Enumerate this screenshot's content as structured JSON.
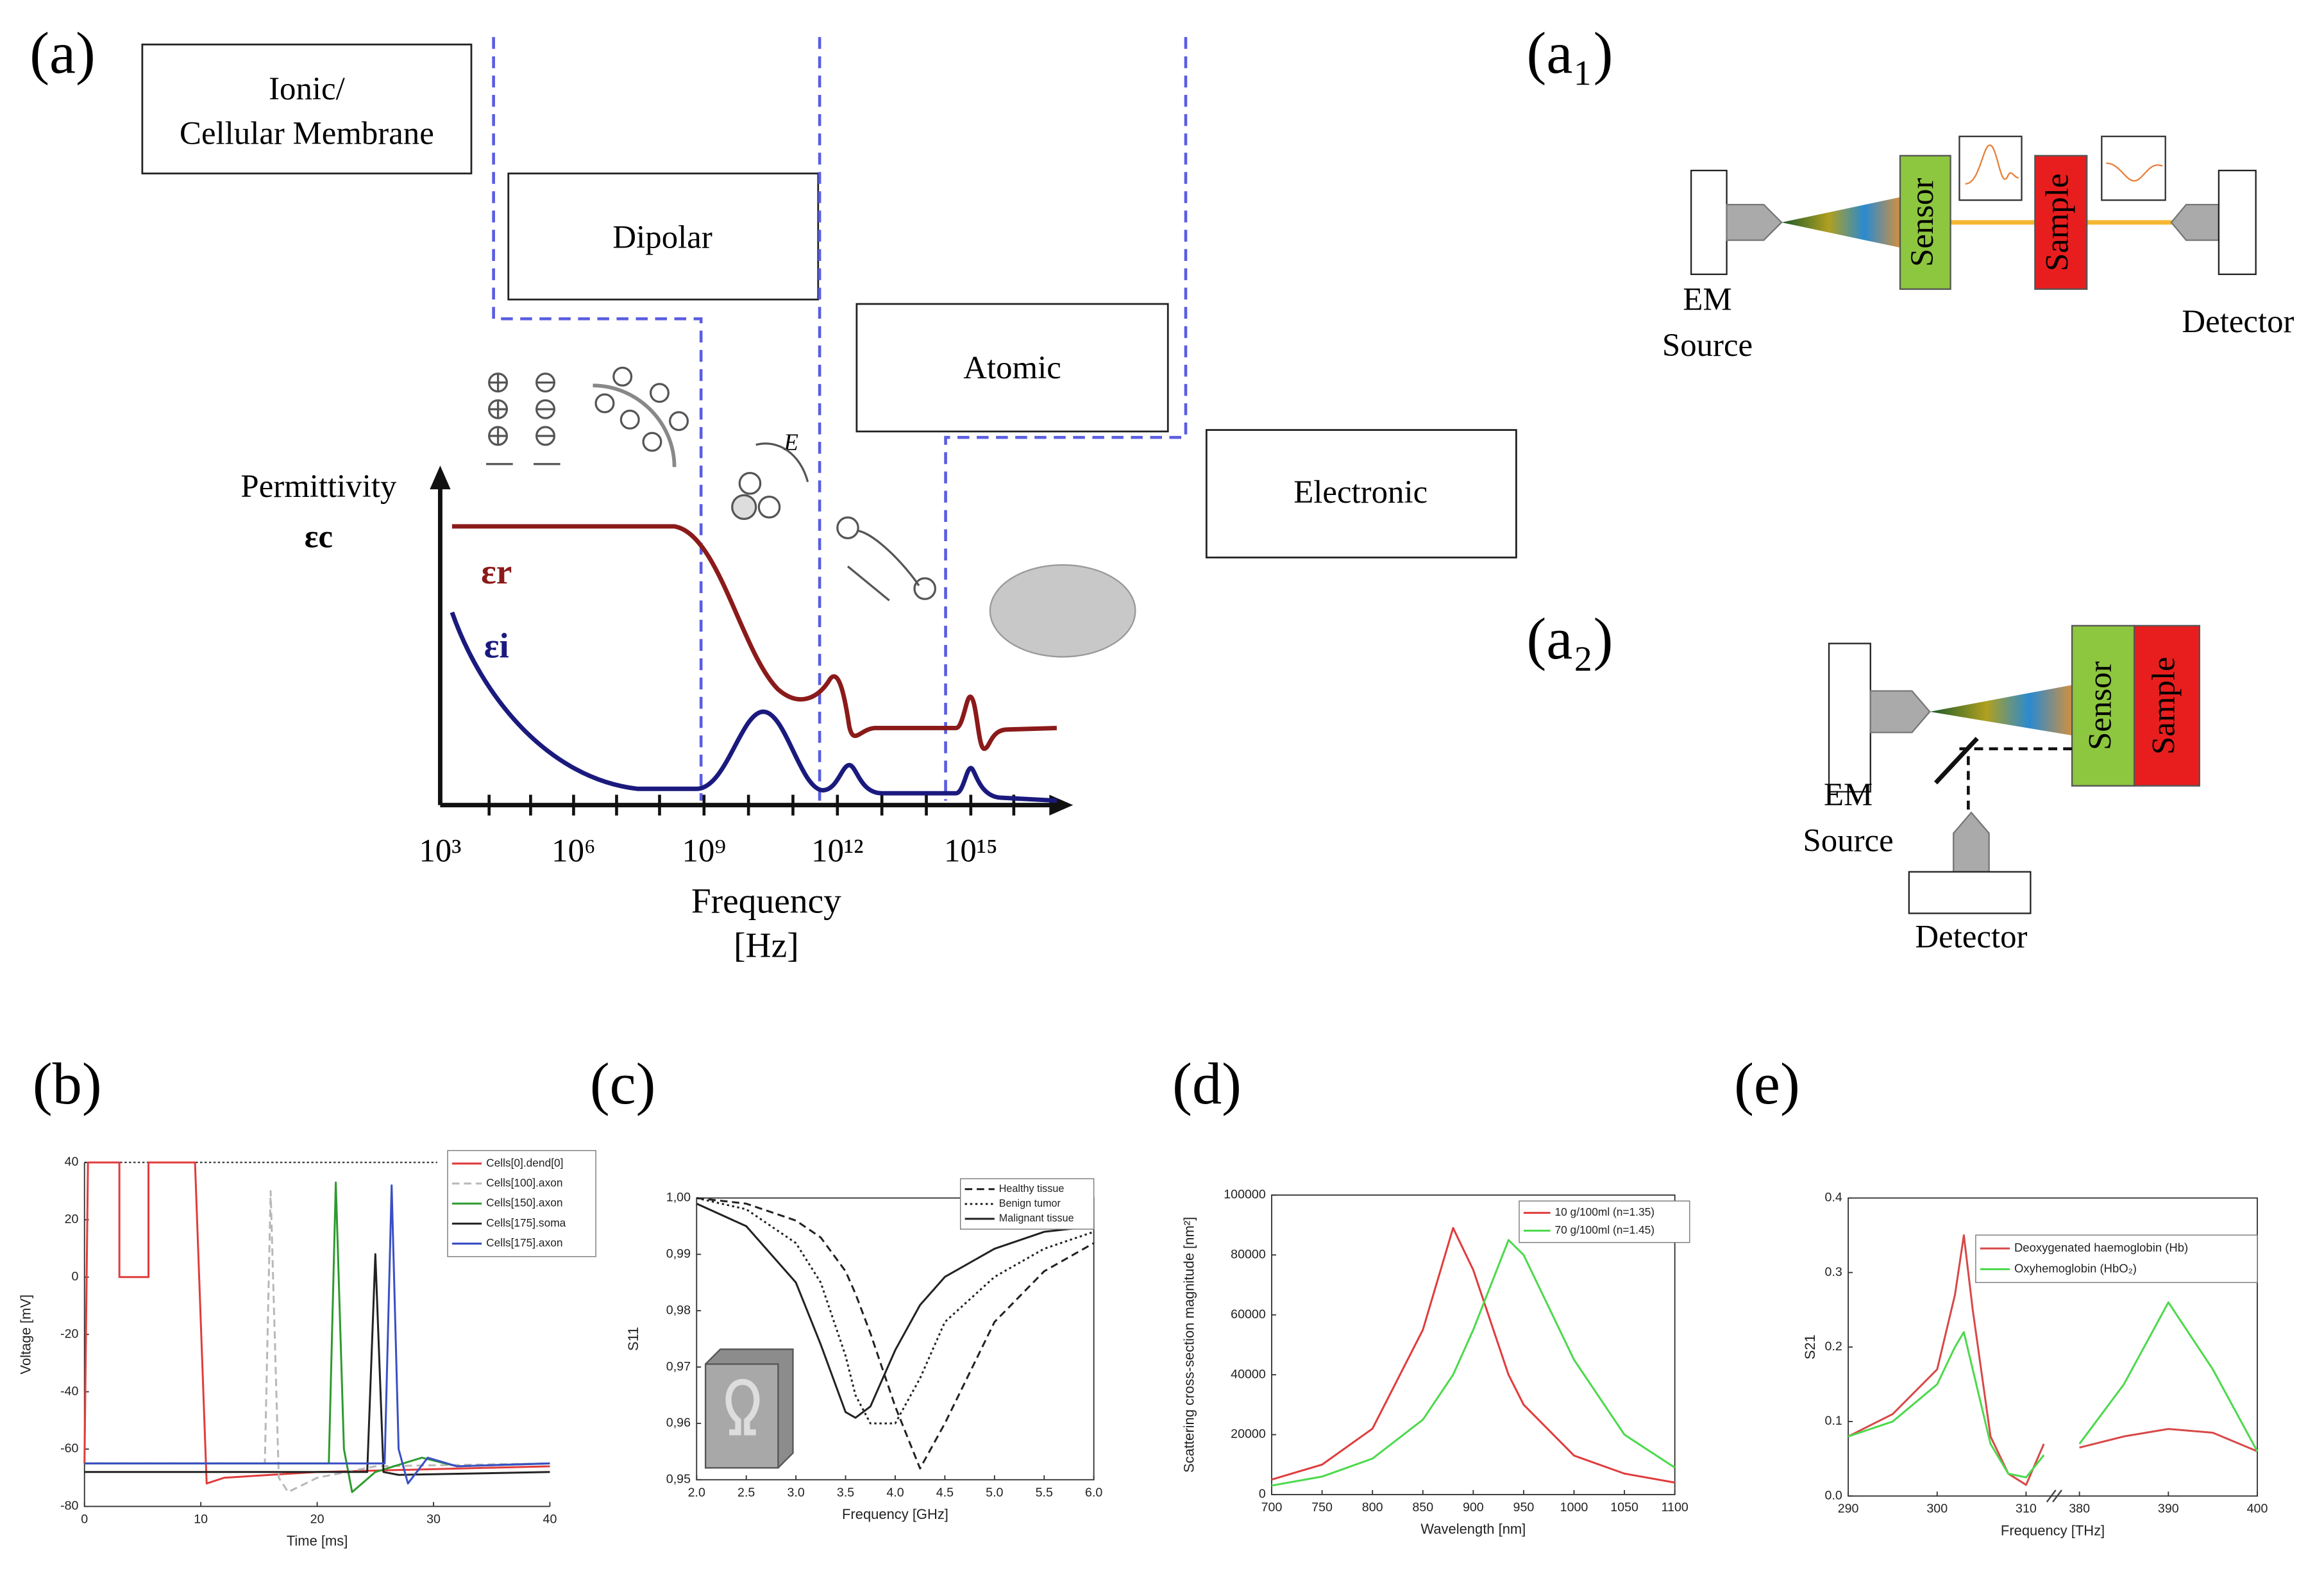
{
  "panel_a": {
    "label": "(a)",
    "boxes": [
      [
        "Ionic/",
        "Cellular Membrane"
      ],
      [
        "Dipolar"
      ],
      [
        "Atomic"
      ],
      [
        "Electronic"
      ]
    ],
    "y_label": [
      "Permittivity",
      "εc"
    ],
    "curves": [
      "εr",
      "εi"
    ],
    "x_ticks": [
      "10³",
      "10⁶",
      "10⁹",
      "10¹²",
      "10¹⁵"
    ],
    "x_label": [
      "Frequency",
      "[Hz]"
    ],
    "field": "E⃗"
  },
  "panel_a1": {
    "label": "(a₁)",
    "source": [
      "EM",
      "Source"
    ],
    "sensor": "Sensor",
    "sample": "Sample",
    "detector": "Detector"
  },
  "panel_a2": {
    "label": "(a₂)",
    "source": [
      "EM",
      "Source"
    ],
    "sensor": "Sensor",
    "sample": "Sample",
    "detector": "Detector"
  },
  "panel_labels": [
    "(b)",
    "(c)",
    "(d)",
    "(e)"
  ],
  "chart_data": [
    {
      "type": "line",
      "xlabel": "Time [ms]",
      "ylabel": "Voltage [mV]",
      "xlim": [
        0,
        40
      ],
      "xticks": [
        0,
        10,
        20,
        30,
        40
      ],
      "ylim": [
        -80,
        40
      ],
      "yticks": [
        -80,
        -60,
        -40,
        -20,
        0,
        20,
        40
      ],
      "legend": "upper right",
      "series": [
        {
          "name": "Cells[0].dend[0]",
          "color": "#e03c3c",
          "dash": "solid",
          "x": [
            0,
            0.3,
            3,
            3,
            5.5,
            5.5,
            9.5,
            10.5,
            12,
            20,
            40
          ],
          "values": [
            -65,
            40,
            40,
            0,
            0,
            40,
            40,
            -72,
            -70,
            -68,
            -66
          ]
        },
        {
          "name": "Cells[100].axon",
          "color": "#b8b8b8",
          "dash": "dashed",
          "x": [
            0,
            15.5,
            16,
            16.7,
            17.5,
            20,
            25,
            40
          ],
          "values": [
            -65,
            -65,
            30,
            -70,
            -75,
            -70,
            -66,
            -65
          ]
        },
        {
          "name": "Cells[150].axon",
          "color": "#2e9a2e",
          "dash": "solid",
          "x": [
            0,
            21,
            21.6,
            22.3,
            23,
            25,
            29,
            32,
            40
          ],
          "values": [
            -65,
            -65,
            33,
            -60,
            -75,
            -68,
            -63,
            -66,
            -65
          ]
        },
        {
          "name": "Cells[175].soma",
          "color": "#222222",
          "dash": "solid",
          "x": [
            0,
            24.3,
            25,
            25.7,
            27,
            40
          ],
          "values": [
            -68,
            -68,
            8,
            -68,
            -69,
            -68
          ]
        },
        {
          "name": "Cells[175].axon",
          "color": "#3a4fc4",
          "dash": "solid",
          "x": [
            0,
            25.8,
            26.4,
            27,
            27.8,
            29.5,
            32,
            40
          ],
          "values": [
            -65,
            -65,
            32,
            -60,
            -72,
            -63,
            -66,
            -65
          ]
        }
      ]
    },
    {
      "type": "line",
      "xlabel": "Frequency [GHz]",
      "ylabel": "S11",
      "xlim": [
        2,
        6
      ],
      "xticks": [
        {
          "value": 2,
          "label": "2.0"
        },
        2.5,
        {
          "value": 3,
          "label": "3.0"
        },
        3.5,
        {
          "value": 4,
          "label": "4.0"
        },
        4.5,
        {
          "value": 5,
          "label": "5.0"
        },
        5.5,
        {
          "value": 6,
          "label": "6.0"
        }
      ],
      "ylim": [
        0.95,
        1.0
      ],
      "yticks": [
        {
          "value": 0.95,
          "label": "0,95"
        },
        {
          "value": 0.96,
          "label": "0,96"
        },
        {
          "value": 0.97,
          "label": "0,97"
        },
        {
          "value": 0.98,
          "label": "0,98"
        },
        {
          "value": 0.99,
          "label": "0,99"
        },
        {
          "value": 1.0,
          "label": "1,00"
        }
      ],
      "legend": "upper right",
      "x": [
        2.0,
        2.5,
        3.0,
        3.25,
        3.5,
        3.6,
        3.75,
        4.0,
        4.25,
        4.5,
        5.0,
        5.5,
        6.0
      ],
      "series": [
        {
          "name": "Healthy tissue",
          "color": "#222222",
          "dash": "dashed",
          "values": [
            1.0,
            0.999,
            0.996,
            0.993,
            0.987,
            0.983,
            0.976,
            0.963,
            0.952,
            0.96,
            0.978,
            0.987,
            0.992
          ]
        },
        {
          "name": "Benign tumor",
          "color": "#222222",
          "dash": "dotted",
          "values": [
            1.0,
            0.998,
            0.992,
            0.985,
            0.972,
            0.965,
            0.96,
            0.96,
            0.968,
            0.978,
            0.986,
            0.991,
            0.994
          ]
        },
        {
          "name": "Malignant tissue",
          "color": "#222222",
          "dash": "solid",
          "values": [
            0.999,
            0.995,
            0.985,
            0.974,
            0.962,
            0.961,
            0.963,
            0.973,
            0.981,
            0.986,
            0.991,
            0.994,
            0.995
          ]
        }
      ]
    },
    {
      "type": "line",
      "xlabel": "Wavelength [nm]",
      "ylabel": "Scattering cross-section magnitude [nm²]",
      "xlim": [
        700,
        1100
      ],
      "xticks": [
        700,
        750,
        800,
        850,
        900,
        950,
        1000,
        1050,
        1100
      ],
      "ylim": [
        0,
        100000
      ],
      "yticks": [
        0,
        20000,
        40000,
        60000,
        80000,
        100000
      ],
      "legend": "upper right",
      "x": [
        700,
        750,
        800,
        850,
        880,
        900,
        935,
        950,
        1000,
        1050,
        1100
      ],
      "series": [
        {
          "name": "10 g/100ml (n=1.35)",
          "color": "#e03c3c",
          "dash": "solid",
          "values": [
            5000,
            10000,
            22000,
            55000,
            89000,
            75000,
            40000,
            30000,
            13000,
            7000,
            4000
          ]
        },
        {
          "name": "70 g/100ml (n=1.45)",
          "color": "#4cd94c",
          "dash": "solid",
          "values": [
            3000,
            6000,
            12000,
            25000,
            40000,
            55000,
            85000,
            80000,
            45000,
            20000,
            9000
          ]
        }
      ]
    },
    {
      "type": "line",
      "xlabel": "Frequency [THz]",
      "ylabel": "S21",
      "xlim": [
        290,
        400
      ],
      "xbreak": [
        312,
        378
      ],
      "xticks": [
        290,
        300,
        310,
        380,
        390,
        400
      ],
      "ylim": [
        0,
        0.4
      ],
      "yticks": [
        {
          "value": 0,
          "label": "0.0"
        },
        0.1,
        0.2,
        0.3,
        0.4
      ],
      "legend": "upper right",
      "x": [
        290,
        295,
        300,
        302,
        303,
        304,
        306,
        308,
        310,
        312,
        380,
        385,
        390,
        395,
        400
      ],
      "series": [
        {
          "name": "Deoxygenated haemoglobin (Hb)",
          "color": "#d84848",
          "dash": "solid",
          "values": [
            0.08,
            0.11,
            0.17,
            0.27,
            0.35,
            0.25,
            0.08,
            0.03,
            0.015,
            0.07,
            0.065,
            0.08,
            0.09,
            0.085,
            0.06
          ]
        },
        {
          "name": "Oxyhemoglobin (HbO₂)",
          "color": "#4cd94c",
          "dash": "solid",
          "values": [
            0.08,
            0.1,
            0.15,
            0.2,
            0.22,
            0.17,
            0.07,
            0.03,
            0.025,
            0.055,
            0.07,
            0.15,
            0.26,
            0.17,
            0.06
          ]
        }
      ]
    }
  ]
}
